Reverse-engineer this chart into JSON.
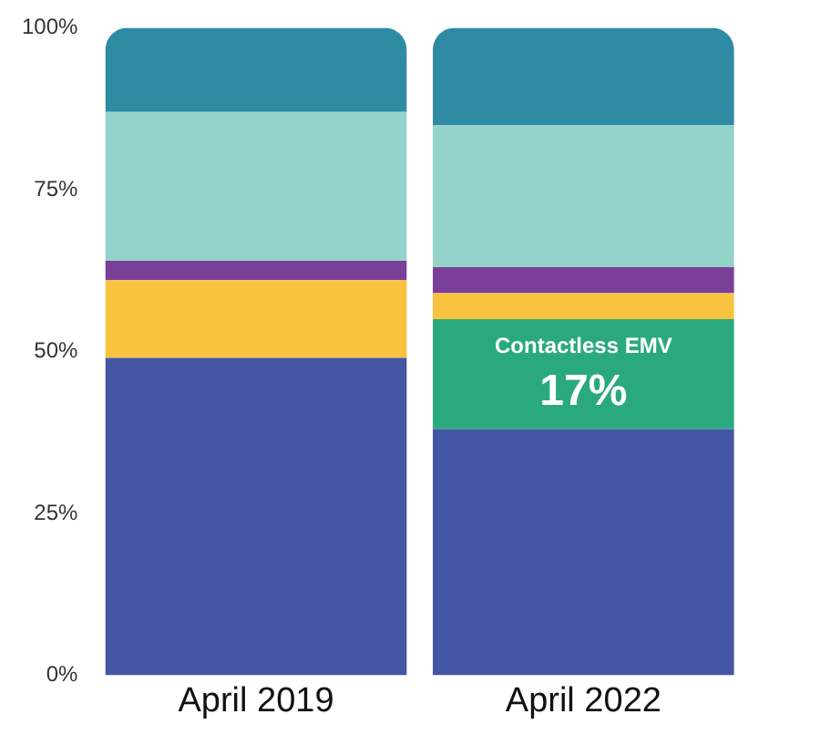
{
  "chart_data": {
    "type": "bar",
    "stacked": true,
    "categories": [
      "April 2019",
      "April 2022"
    ],
    "series": [
      {
        "color": "#4355a3",
        "values": [
          49,
          38
        ]
      },
      {
        "name": "Contactless EMV",
        "color": "#2aa97f",
        "values": [
          0,
          17
        ],
        "value_labels": [
          null,
          "17%"
        ]
      },
      {
        "color": "#f9c33f",
        "values": [
          12,
          4
        ]
      },
      {
        "color": "#7b3f98",
        "values": [
          3,
          4
        ]
      },
      {
        "color": "#93d3c9",
        "values": [
          23,
          22
        ]
      },
      {
        "color": "#2f8aa3",
        "values": [
          13,
          15
        ]
      }
    ],
    "ylim": [
      0,
      100
    ],
    "yticks": [
      {
        "value": 0,
        "label": "0%"
      },
      {
        "value": 25,
        "label": "25%"
      },
      {
        "value": 50,
        "label": "50%"
      },
      {
        "value": 75,
        "label": "75%"
      },
      {
        "value": 100,
        "label": "100%"
      }
    ],
    "grid": false,
    "legend": false
  }
}
